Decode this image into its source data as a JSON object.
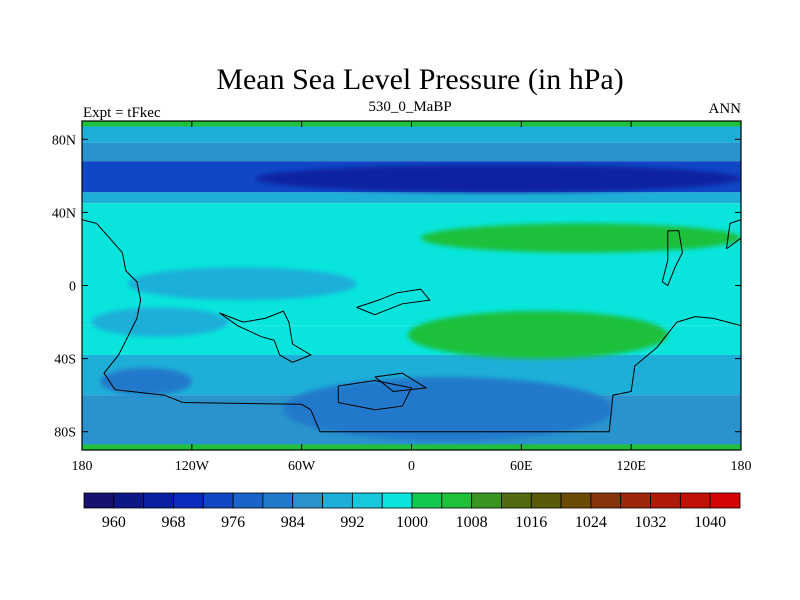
{
  "chart_data": {
    "type": "heatmap",
    "title": "Mean Sea Level Pressure (in hPa)",
    "left_label": "Expt = tFkec",
    "center_label": "530_0_MaBP",
    "right_label": "ANN",
    "x_ticks": [
      "180",
      "120W",
      "60W",
      "0",
      "60E",
      "120E",
      "180"
    ],
    "x_tick_values": [
      -180,
      -120,
      -60,
      0,
      60,
      120,
      180
    ],
    "y_ticks": [
      "80N",
      "40N",
      "0",
      "40S",
      "80S"
    ],
    "y_tick_values": [
      80,
      40,
      0,
      -40,
      -80
    ],
    "xlim": [
      -180,
      180
    ],
    "ylim": [
      -90,
      90
    ],
    "colorbar": {
      "levels": [
        956,
        960,
        964,
        968,
        972,
        976,
        980,
        984,
        988,
        992,
        996,
        1000,
        1004,
        1008,
        1012,
        1016,
        1020,
        1024,
        1028,
        1032,
        1036,
        1040,
        1044
      ],
      "colors": [
        "#150f6d",
        "#0d1787",
        "#0a20a2",
        "#0a2bbc",
        "#1047c4",
        "#1a63c8",
        "#2279cb",
        "#2a93cd",
        "#1eafd8",
        "#16c8dc",
        "#09e5dd",
        "#13c84e",
        "#1fc03a",
        "#3a9421",
        "#526b10",
        "#5b5a08",
        "#6b4b06",
        "#86340a",
        "#9e260a",
        "#b01a0a",
        "#c21007",
        "#d60505"
      ],
      "labels": [
        "960",
        "968",
        "976",
        "984",
        "992",
        "1000",
        "1008",
        "1016",
        "1024",
        "1032",
        "1040"
      ],
      "label_values": [
        960,
        968,
        976,
        984,
        992,
        1000,
        1008,
        1016,
        1024,
        1032,
        1040
      ]
    },
    "field_bands": [
      {
        "lat": [
          90,
          87
        ],
        "value": 1006
      },
      {
        "lat": [
          87,
          78
        ],
        "value": 988
      },
      {
        "lat": [
          78,
          68
        ],
        "value": 984
      },
      {
        "lat": [
          68,
          51
        ],
        "value": 974
      },
      {
        "lat": [
          51,
          45
        ],
        "value": 988
      },
      {
        "lat": [
          45,
          -22
        ],
        "value": 998
      },
      {
        "lat": [
          -22,
          -38
        ],
        "value": 996
      },
      {
        "lat": [
          -38,
          -60
        ],
        "value": 990
      },
      {
        "lat": [
          -60,
          -87
        ],
        "value": 984
      },
      {
        "lat": [
          -87,
          -90
        ],
        "value": 1006
      }
    ],
    "field_blobs": [
      {
        "lon": [
          -85,
          180
        ],
        "lat": [
          66,
          51
        ],
        "value": 966
      },
      {
        "lon": [
          -155,
          -30
        ],
        "lat": [
          10,
          -8
        ],
        "value": 988
      },
      {
        "lon": [
          -175,
          -100
        ],
        "lat": [
          -12,
          -28
        ],
        "value": 990
      },
      {
        "lon": [
          -170,
          -120
        ],
        "lat": [
          -45,
          -60
        ],
        "value": 982
      },
      {
        "lon": [
          -70,
          110
        ],
        "lat": [
          -50,
          -85
        ],
        "value": 980
      },
      {
        "lon": [
          5,
          180
        ],
        "lat": [
          34,
          18
        ],
        "value": 1004
      },
      {
        "lon": [
          -2,
          140
        ],
        "lat": [
          -14,
          -40
        ],
        "value": 1004
      }
    ],
    "coastlines": [
      [
        [
          -180,
          36
        ],
        [
          -172,
          34
        ],
        [
          -165,
          26
        ],
        [
          -158,
          18
        ],
        [
          -156,
          8
        ],
        [
          -150,
          2
        ],
        [
          -148,
          -8
        ],
        [
          -150,
          -18
        ],
        [
          -155,
          -28
        ],
        [
          -160,
          -38
        ],
        [
          -168,
          -48
        ],
        [
          -162,
          -57
        ],
        [
          -135,
          -60
        ],
        [
          -125,
          -64
        ],
        [
          -60,
          -65
        ],
        [
          -55,
          -68
        ],
        [
          -50,
          -80
        ],
        [
          108,
          -80
        ],
        [
          110,
          -60
        ],
        [
          120,
          -58
        ],
        [
          122,
          -44
        ],
        [
          134,
          -34
        ],
        [
          145,
          -20
        ],
        [
          155,
          -17
        ],
        [
          165,
          -18
        ],
        [
          180,
          -22
        ]
      ],
      [
        [
          -105,
          -15
        ],
        [
          -92,
          -20
        ],
        [
          -80,
          -18
        ],
        [
          -70,
          -14
        ],
        [
          -67,
          -20
        ],
        [
          -65,
          -32
        ],
        [
          -55,
          -38
        ],
        [
          -65,
          -42
        ],
        [
          -72,
          -38
        ],
        [
          -75,
          -30
        ],
        [
          -82,
          -28
        ],
        [
          -95,
          -22
        ],
        [
          -105,
          -15
        ]
      ],
      [
        [
          -30,
          -12
        ],
        [
          -18,
          -8
        ],
        [
          -8,
          -4
        ],
        [
          5,
          -2
        ],
        [
          10,
          -8
        ],
        [
          -5,
          -10
        ],
        [
          -20,
          -16
        ],
        [
          -30,
          -12
        ]
      ],
      [
        [
          -40,
          -55
        ],
        [
          -20,
          -52
        ],
        [
          0,
          -56
        ],
        [
          -5,
          -66
        ],
        [
          -20,
          -68
        ],
        [
          -40,
          -64
        ],
        [
          -40,
          -55
        ]
      ],
      [
        [
          -20,
          -50
        ],
        [
          -5,
          -48
        ],
        [
          8,
          -56
        ],
        [
          -10,
          -58
        ],
        [
          -20,
          -50
        ]
      ],
      [
        [
          140,
          30
        ],
        [
          146,
          30
        ],
        [
          148,
          18
        ],
        [
          144,
          10
        ],
        [
          140,
          0
        ],
        [
          137,
          2
        ],
        [
          140,
          14
        ],
        [
          140,
          30
        ]
      ],
      [
        [
          172,
          20
        ],
        [
          180,
          26
        ],
        [
          180,
          36
        ],
        [
          174,
          34
        ],
        [
          172,
          20
        ]
      ]
    ]
  }
}
